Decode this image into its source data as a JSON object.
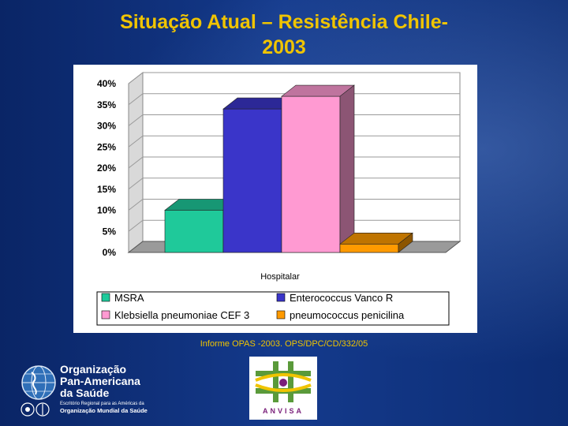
{
  "slide": {
    "title_line1": "Situação Atual – Resistência Chile-",
    "title_line2": "2003",
    "source_note": "Informe OPAS -2003. OPS/DPC/CD/332/05"
  },
  "chart_data": {
    "type": "bar",
    "style": "3d-clustered",
    "categories": [
      "Hospitalar"
    ],
    "xlabel": "Hospitalar",
    "ylabel": "",
    "ylim": [
      0,
      0.4
    ],
    "yticks": [
      "0%",
      "5%",
      "10%",
      "15%",
      "20%",
      "25%",
      "30%",
      "35%",
      "40%"
    ],
    "grid": true,
    "legend_position": "bottom",
    "series": [
      {
        "name": "MSRA",
        "values": [
          0.1
        ],
        "color": "#1fc99a"
      },
      {
        "name": "Enterococcus Vanco R",
        "values": [
          0.34
        ],
        "color": "#3a35c9"
      },
      {
        "name": "Klebsiella pneumoniae CEF 3",
        "values": [
          0.37
        ],
        "color": "#ff9ad2"
      },
      {
        "name": "pneumococcus  penicilina",
        "values": [
          0.02
        ],
        "color": "#ff9a00"
      }
    ]
  },
  "organization": {
    "name_line1": "Organização",
    "name_line2": "Pan-Americana",
    "name_line3": "da Saúde",
    "sub_line1": "Escritório Regional para as Américas da",
    "sub_line2": "Organização Mundial da Saúde"
  },
  "anvisa": {
    "label": "ANVISA"
  }
}
